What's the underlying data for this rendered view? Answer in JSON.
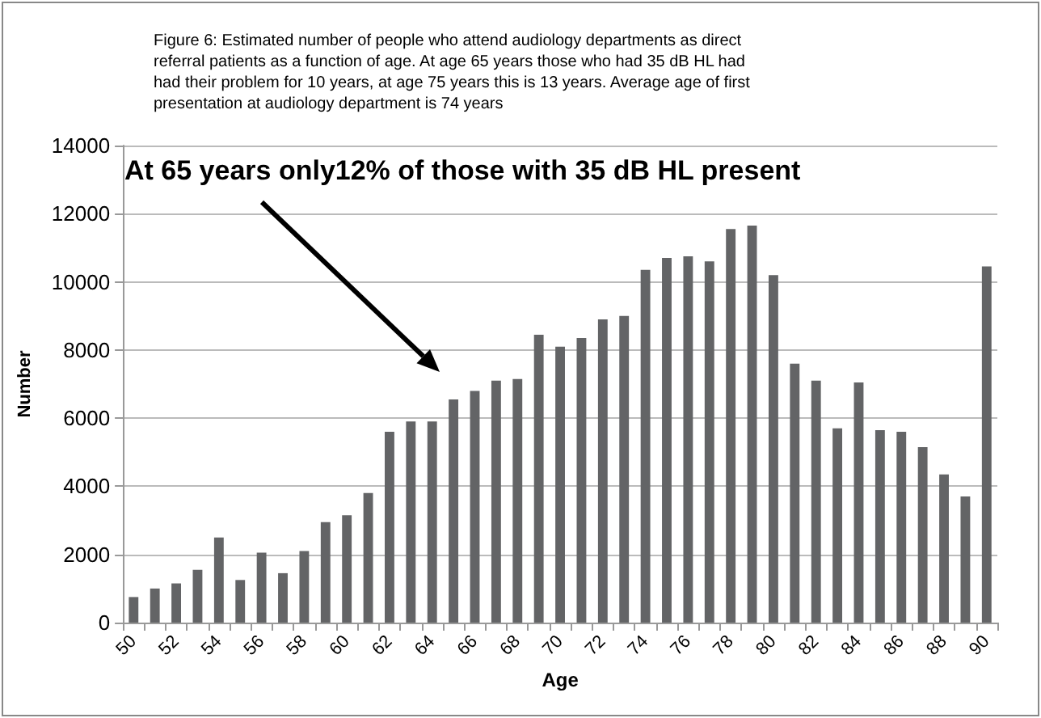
{
  "chart_data": {
    "type": "bar",
    "title": "Figure 6: Estimated number of people who attend audiology departments as direct referral patients as a function of age. At age 65 years those who had 35 dB HL had had their problem for 10 years, at age 75 years this is 13 years. Average age of first presentation at audiology department is 74 years",
    "xlabel": "Age",
    "ylabel": "Number",
    "categories": [
      "50",
      null,
      "52",
      null,
      "54",
      null,
      "56",
      null,
      "58",
      null,
      "60",
      null,
      "62",
      null,
      "64",
      null,
      "66",
      null,
      "68",
      null,
      "70",
      null,
      "72",
      null,
      "74",
      null,
      "76",
      null,
      "78",
      null,
      "80",
      null,
      "82",
      null,
      "84",
      null,
      "86",
      null,
      "88",
      null,
      "90"
    ],
    "values": [
      750,
      1000,
      1150,
      1550,
      2500,
      1250,
      2050,
      1450,
      2100,
      2950,
      3150,
      3800,
      5600,
      5900,
      5900,
      6550,
      6800,
      7100,
      7150,
      8450,
      8100,
      8350,
      8900,
      9000,
      10350,
      10700,
      10750,
      10600,
      11550,
      11650,
      10200,
      7600,
      7100,
      5700,
      7050,
      5650,
      5600,
      5150,
      4350,
      3700,
      10450
    ],
    "color": "#636466",
    "ylim": [
      0,
      14000
    ],
    "yticks": [
      0,
      2000,
      4000,
      6000,
      8000,
      10000,
      12000,
      14000
    ],
    "grid": "y",
    "annotations": [
      "At 65 years only12% of those with 35 dB HL present"
    ]
  }
}
